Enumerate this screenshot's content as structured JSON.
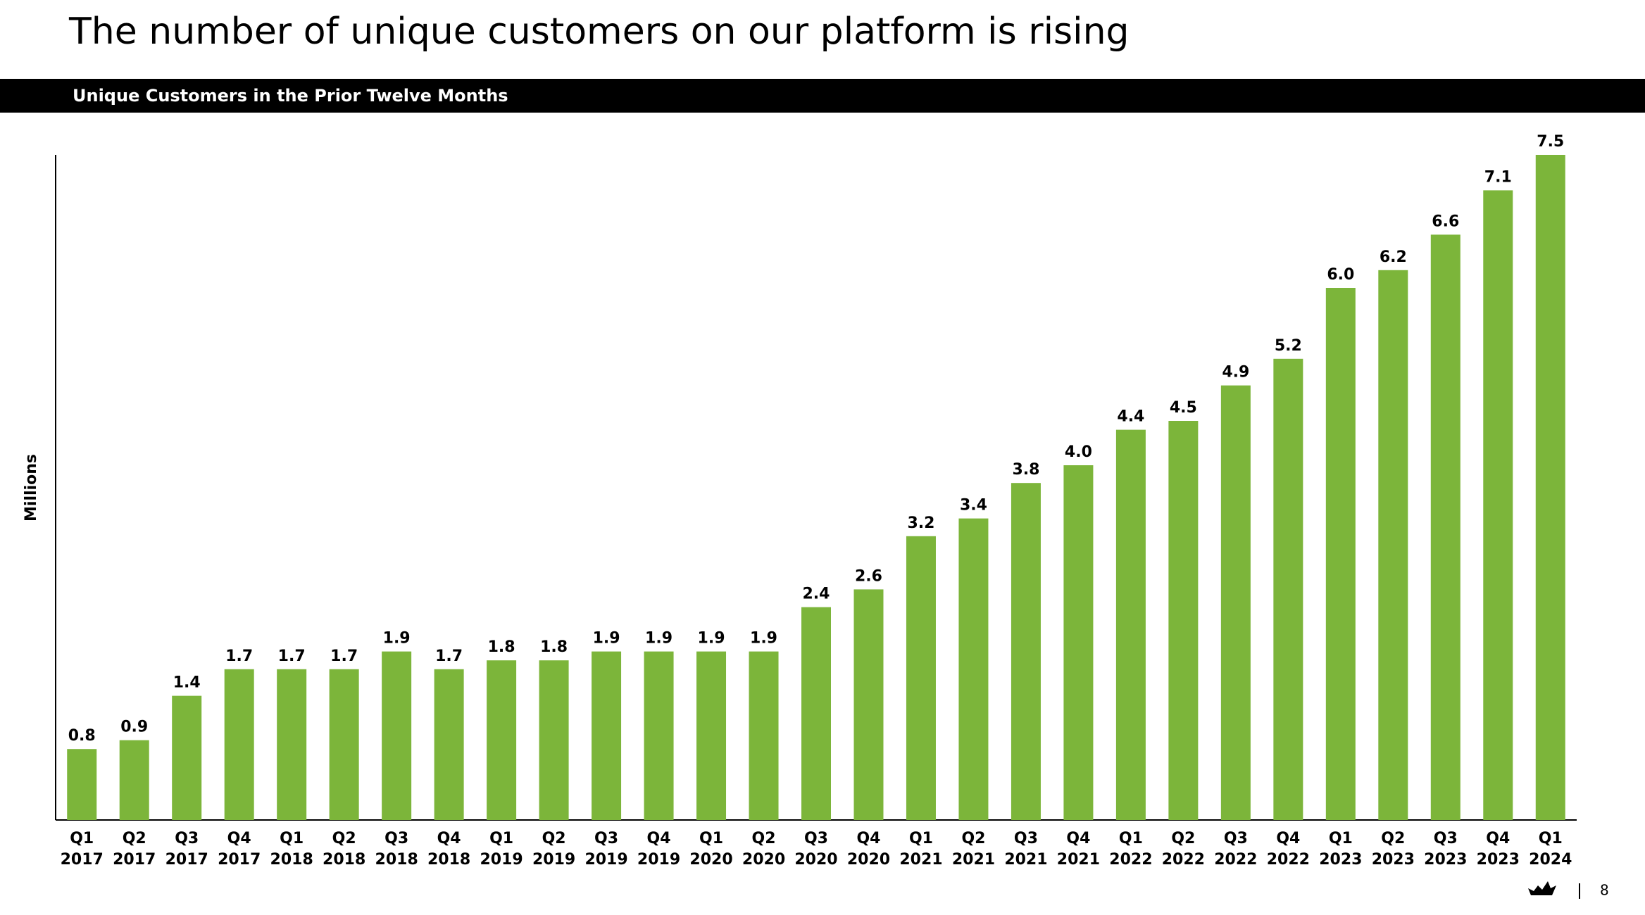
{
  "chart_data": {
    "type": "bar",
    "title": "The number of unique customers on our platform is rising",
    "subtitle": "Unique Customers in the Prior Twelve Months",
    "y_label": "Millions",
    "page_number": "8",
    "categories": [
      "Q1 2017",
      "Q2 2017",
      "Q3 2017",
      "Q4 2017",
      "Q1 2018",
      "Q2 2018",
      "Q3 2018",
      "Q4 2018",
      "Q1 2019",
      "Q2 2019",
      "Q3 2019",
      "Q4 2019",
      "Q1 2020",
      "Q2 2020",
      "Q3 2020",
      "Q4 2020",
      "Q1 2021",
      "Q2 2021",
      "Q3 2021",
      "Q4 2021",
      "Q1 2022",
      "Q2 2022",
      "Q3 2022",
      "Q4 2022",
      "Q1 2023",
      "Q2 2023",
      "Q3 2023",
      "Q4 2023",
      "Q1 2024"
    ],
    "values": [
      0.8,
      0.9,
      1.4,
      1.7,
      1.7,
      1.7,
      1.9,
      1.7,
      1.8,
      1.8,
      1.9,
      1.9,
      1.9,
      1.9,
      2.4,
      2.6,
      3.2,
      3.4,
      3.8,
      4.0,
      4.4,
      4.5,
      4.9,
      5.2,
      6.0,
      6.2,
      6.6,
      7.1,
      7.5
    ],
    "value_labels": [
      "0.8",
      "0.9",
      "1.4",
      "1.7",
      "1.7",
      "1.7",
      "1.9",
      "1.7",
      "1.8",
      "1.8",
      "1.9",
      "1.9",
      "1.9",
      "1.9",
      "2.4",
      "2.6",
      "3.2",
      "3.4",
      "3.8",
      "4.0",
      "4.4",
      "4.5",
      "4.9",
      "5.2",
      "6.0",
      "6.2",
      "6.6",
      "7.1",
      "7.5"
    ],
    "color": "#7cb53a",
    "ylim": [
      0,
      7.5
    ]
  }
}
